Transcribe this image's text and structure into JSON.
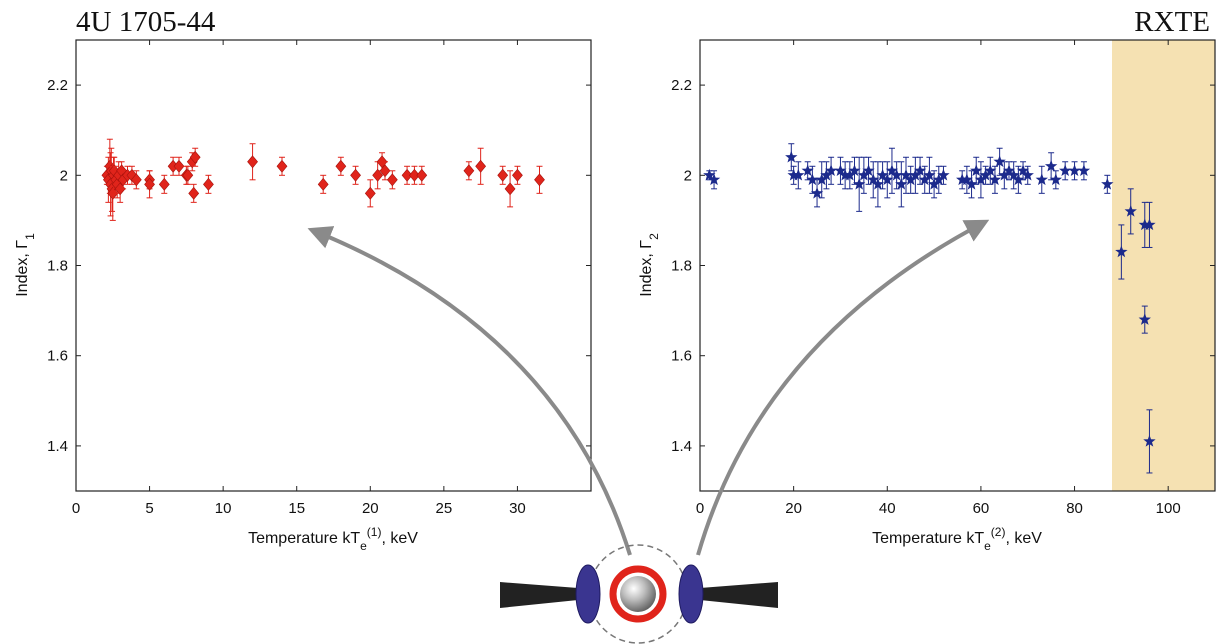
{
  "header": {
    "left_title": "4U 1705-44",
    "right_title": "RXTE"
  },
  "colors": {
    "series1": "#e0241b",
    "series2": "#1c2a8c",
    "highlight": "#f5e1b2",
    "arrow": "#8a8a8a",
    "disk": "#222222",
    "cloud": "#3a3590",
    "corona": "#e0241b"
  },
  "chart_data": [
    {
      "type": "scatter",
      "marker": "diamond",
      "title": "",
      "xlabel": {
        "main": "Temperature kT",
        "sub": "e",
        "sup": "(1)",
        "tail": ", keV"
      },
      "ylabel": {
        "main": "Index, Γ",
        "sub": "1"
      },
      "xlim": [
        0,
        35
      ],
      "ylim": [
        1.3,
        2.3
      ],
      "xticks": [
        0,
        5,
        10,
        15,
        20,
        25,
        30
      ],
      "yticks": [
        1.4,
        1.6,
        1.8,
        2.0,
        2.2
      ],
      "ytick_labels": [
        "1.4",
        "1.6",
        "1.8",
        "2",
        "2.2"
      ],
      "grid": false,
      "series": [
        {
          "x": [
            2.1,
            2.2,
            2.3,
            2.35,
            2.4,
            2.45,
            2.5,
            2.55,
            2.6,
            2.7,
            2.8,
            2.9,
            3.0,
            3.1,
            3.2,
            3.5,
            3.8,
            4.1,
            5.0,
            5.0,
            6.0,
            6.6,
            7.0,
            7.5,
            7.6,
            7.9,
            8.0,
            8.1,
            9.0,
            12.0,
            14.0,
            16.8,
            18.0,
            19.0,
            20.0,
            20.5,
            20.8,
            21.0,
            21.5,
            22.5,
            23.0,
            23.5,
            26.7,
            27.5,
            29.0,
            29.5,
            30.0,
            31.5
          ],
          "y": [
            2.0,
            1.99,
            2.02,
            1.98,
            2.01,
            1.97,
            1.96,
            2.0,
            2.01,
            1.99,
            1.98,
            2.0,
            1.97,
            2.01,
            1.99,
            2.0,
            2.0,
            1.99,
            1.99,
            1.98,
            1.98,
            2.02,
            2.02,
            2.0,
            2.0,
            2.03,
            1.96,
            2.04,
            1.98,
            2.03,
            2.02,
            1.98,
            2.02,
            2.0,
            1.96,
            2.0,
            2.03,
            2.01,
            1.99,
            2.0,
            2.0,
            2.0,
            2.01,
            2.02,
            2.0,
            1.97,
            2.0,
            1.99
          ],
          "err": [
            0.02,
            0.05,
            0.06,
            0.07,
            0.05,
            0.05,
            0.06,
            0.04,
            0.03,
            0.03,
            0.03,
            0.03,
            0.03,
            0.02,
            0.02,
            0.02,
            0.02,
            0.02,
            0.02,
            0.03,
            0.02,
            0.02,
            0.02,
            0.02,
            0.02,
            0.02,
            0.02,
            0.02,
            0.02,
            0.04,
            0.02,
            0.02,
            0.02,
            0.02,
            0.03,
            0.03,
            0.02,
            0.02,
            0.02,
            0.02,
            0.02,
            0.02,
            0.02,
            0.04,
            0.02,
            0.04,
            0.02,
            0.03
          ]
        }
      ]
    },
    {
      "type": "scatter",
      "marker": "star",
      "title": "",
      "xlabel": {
        "main": "Temperature kT",
        "sub": "e",
        "sup": "(2)",
        "tail": ", keV"
      },
      "ylabel": {
        "main": "Index, Γ",
        "sub": "2"
      },
      "xlim": [
        0,
        110
      ],
      "ylim": [
        1.3,
        2.3
      ],
      "xticks": [
        0,
        20,
        40,
        60,
        80,
        100
      ],
      "yticks": [
        1.4,
        1.6,
        1.8,
        2.0,
        2.2
      ],
      "ytick_labels": [
        "1.4",
        "1.6",
        "1.8",
        "2",
        "2.2"
      ],
      "highlight_region": [
        88,
        110
      ],
      "grid": false,
      "series": [
        {
          "x": [
            2,
            3,
            19.5,
            20,
            21,
            23,
            24,
            25,
            26,
            27,
            28,
            30,
            31,
            32,
            33,
            34,
            35,
            36,
            37,
            38,
            39,
            40,
            41,
            42,
            43,
            44,
            45,
            46,
            47,
            48,
            49,
            50,
            51,
            52,
            56,
            57,
            58,
            59,
            60,
            61,
            62,
            63,
            64,
            65,
            66,
            67,
            68,
            69,
            70,
            73,
            75,
            76,
            78,
            80,
            82,
            87,
            90,
            92,
            95,
            95,
            96,
            96
          ],
          "y": [
            2.0,
            1.99,
            2.04,
            2.0,
            2.0,
            2.01,
            1.99,
            1.96,
            1.99,
            2.0,
            2.01,
            2.01,
            2.0,
            2.0,
            2.01,
            1.98,
            2.0,
            2.01,
            1.99,
            1.98,
            2.0,
            1.99,
            2.01,
            2.0,
            1.98,
            2.0,
            1.99,
            2.0,
            2.01,
            1.99,
            2.0,
            1.98,
            1.99,
            2.0,
            1.99,
            1.99,
            1.98,
            2.01,
            1.99,
            2.0,
            2.01,
            1.99,
            2.03,
            2.0,
            2.01,
            2.0,
            1.99,
            2.01,
            2.0,
            1.99,
            2.02,
            1.99,
            2.01,
            2.01,
            2.01,
            1.98,
            1.83,
            1.92,
            1.89,
            1.68,
            1.41,
            1.89
          ],
          "err": [
            0.01,
            0.02,
            0.03,
            0.02,
            0.03,
            0.02,
            0.03,
            0.03,
            0.04,
            0.03,
            0.03,
            0.03,
            0.03,
            0.03,
            0.03,
            0.06,
            0.04,
            0.03,
            0.04,
            0.05,
            0.03,
            0.04,
            0.05,
            0.03,
            0.05,
            0.04,
            0.03,
            0.04,
            0.03,
            0.03,
            0.04,
            0.03,
            0.03,
            0.02,
            0.02,
            0.03,
            0.03,
            0.03,
            0.04,
            0.02,
            0.03,
            0.03,
            0.03,
            0.03,
            0.02,
            0.03,
            0.03,
            0.02,
            0.02,
            0.03,
            0.03,
            0.02,
            0.02,
            0.02,
            0.02,
            0.02,
            0.06,
            0.05,
            0.05,
            0.03,
            0.07,
            0.05
          ]
        }
      ]
    }
  ]
}
